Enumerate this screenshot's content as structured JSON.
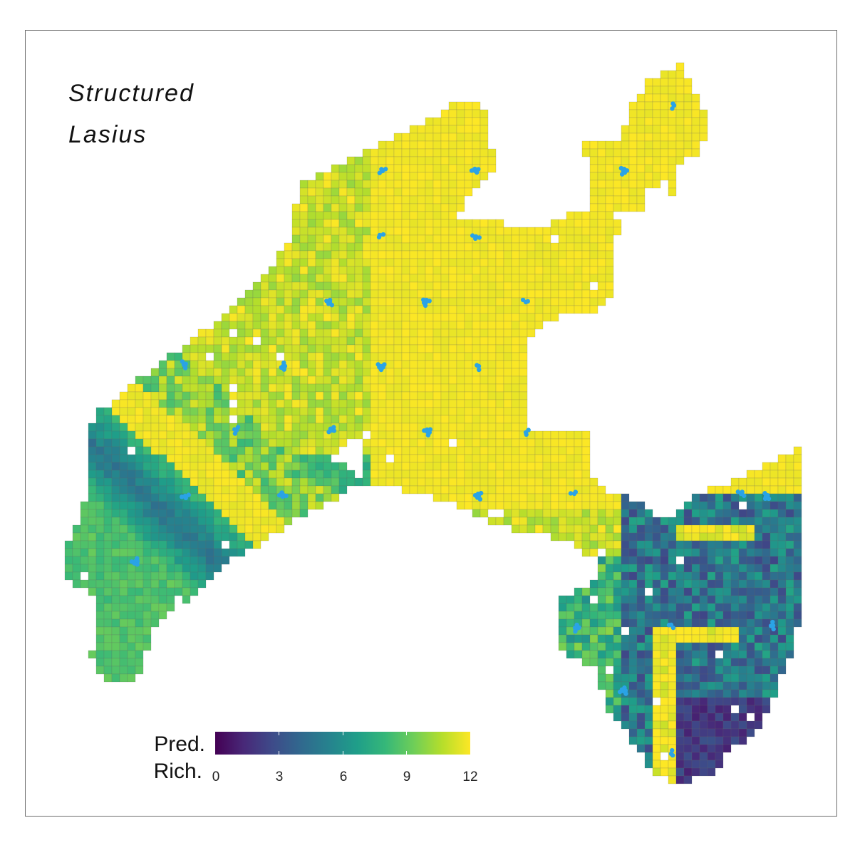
{
  "title": {
    "line1": "Structured",
    "line2": "Lasius"
  },
  "legend": {
    "title_line1": "Pred.",
    "title_line2": "Rich.",
    "ticks": [
      "0",
      "3",
      "6",
      "9",
      "12"
    ],
    "range": [
      0,
      12
    ],
    "colormap": "viridis"
  },
  "colors": {
    "point": "#2aa3e6",
    "frame": "#6e6e6e",
    "cell_border": "#666666"
  }
}
